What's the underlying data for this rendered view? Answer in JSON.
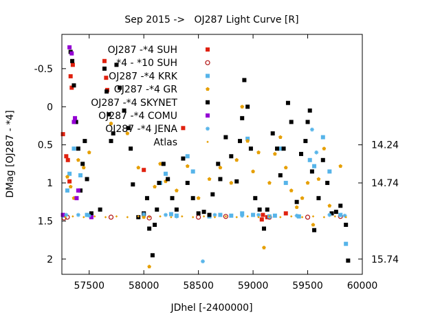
{
  "chart_data": {
    "type": "scatter",
    "title": "Sep 2015 ->   OJ287 Light Curve [R]",
    "xlabel": "JDhel [-2400000]",
    "ylabel": "DMag [OJ287 - *4]",
    "xlim": [
      57250,
      60000
    ],
    "ylim": [
      2.2,
      -0.95
    ],
    "y_inverted": true,
    "x_ticks": [
      57500,
      58000,
      58500,
      59000,
      59500,
      60000
    ],
    "y_ticks": [
      -0.5,
      0,
      0.5,
      1,
      1.5,
      2
    ],
    "y_tick_labels": [
      "-0.5",
      "0",
      "0.5",
      "1",
      "1.5",
      "2"
    ],
    "right_ticks": [
      {
        "y": 0.5,
        "label": "14.24"
      },
      {
        "y": 1.0,
        "label": "14.74"
      },
      {
        "y": 2.0,
        "label": "15.74"
      }
    ],
    "grid": false,
    "legend_position": "top-left",
    "series": [
      {
        "name": "OJ287 -*4 SUH",
        "marker": "square",
        "color": "#e0210f",
        "points": [
          [
            57260,
            0.36
          ],
          [
            57290,
            0.65
          ],
          [
            57305,
            0.7
          ],
          [
            57320,
            0.98
          ],
          [
            57330,
            -0.4
          ],
          [
            57340,
            -0.25
          ],
          [
            57350,
            -0.55
          ],
          [
            57640,
            -0.6
          ],
          [
            57655,
            -0.38
          ],
          [
            57665,
            -0.22
          ],
          [
            58000,
            0.83
          ],
          [
            58360,
            0.28
          ],
          [
            59080,
            1.48
          ],
          [
            59090,
            1.42
          ],
          [
            59130,
            1.45
          ],
          [
            59300,
            1.4
          ]
        ]
      },
      {
        "name": "*4 - *10 SUH",
        "marker": "circle-open",
        "color": "#b01010",
        "points": [
          [
            57270,
            1.46
          ],
          [
            57300,
            1.45
          ],
          [
            57700,
            1.45
          ],
          [
            58050,
            1.46
          ],
          [
            58500,
            1.45
          ],
          [
            58750,
            1.44
          ],
          [
            59150,
            1.45
          ],
          [
            59500,
            1.45
          ],
          [
            59800,
            1.44
          ]
        ]
      },
      {
        "name": "OJ287 -*4 KRK",
        "marker": "square",
        "color": "#56b4e9",
        "points": [
          [
            57270,
            1.43
          ],
          [
            57300,
            1.1
          ],
          [
            57320,
            0.88
          ],
          [
            57360,
            0.55
          ],
          [
            57420,
            0.9
          ],
          [
            57480,
            1.42
          ],
          [
            57520,
            1.43
          ],
          [
            58000,
            1.42
          ],
          [
            58150,
            1.0
          ],
          [
            58200,
            0.88
          ],
          [
            58250,
            1.41
          ],
          [
            58300,
            1.43
          ],
          [
            58400,
            0.65
          ],
          [
            58450,
            0.85
          ],
          [
            58600,
            1.44
          ],
          [
            58700,
            1.42
          ],
          [
            58800,
            1.43
          ],
          [
            58900,
            1.4
          ],
          [
            58950,
            0.42
          ],
          [
            59000,
            1.42
          ],
          [
            59150,
            1.44
          ],
          [
            59200,
            1.43
          ],
          [
            59250,
            0.55
          ],
          [
            59300,
            1.0
          ],
          [
            59420,
            1.44
          ],
          [
            59520,
            0.7
          ],
          [
            59560,
            0.78
          ],
          [
            59640,
            0.4
          ],
          [
            59700,
            0.85
          ],
          [
            59800,
            1.42
          ],
          [
            59850,
            1.8
          ]
        ]
      },
      {
        "name": "OJ287 -*4 GR",
        "marker": "pentagon",
        "color": "#e69f00",
        "points": [
          [
            57300,
            0.92
          ],
          [
            57330,
            1.05
          ],
          [
            57360,
            1.2
          ],
          [
            57400,
            0.7
          ],
          [
            57450,
            0.8
          ],
          [
            57500,
            0.6
          ],
          [
            57700,
            0.22
          ],
          [
            57850,
            0.35
          ],
          [
            57880,
            0.55
          ],
          [
            57950,
            0.8
          ],
          [
            58000,
            1.45
          ],
          [
            58050,
            2.1
          ],
          [
            58100,
            1.05
          ],
          [
            58150,
            0.75
          ],
          [
            58200,
            0.98
          ],
          [
            58300,
            1.1
          ],
          [
            58400,
            0.78
          ],
          [
            58500,
            1.2
          ],
          [
            58600,
            0.95
          ],
          [
            58700,
            0.8
          ],
          [
            58800,
            1.0
          ],
          [
            58850,
            0.7
          ],
          [
            58900,
            0.0
          ],
          [
            58950,
            0.45
          ],
          [
            59000,
            0.85
          ],
          [
            59050,
            0.6
          ],
          [
            59100,
            1.85
          ],
          [
            59150,
            1.0
          ],
          [
            59200,
            0.62
          ],
          [
            59250,
            0.4
          ],
          [
            59300,
            0.8
          ],
          [
            59350,
            1.1
          ],
          [
            59400,
            1.32
          ],
          [
            59450,
            1.2
          ],
          [
            59500,
            1.0
          ],
          [
            59550,
            1.55
          ],
          [
            59600,
            0.95
          ],
          [
            59650,
            0.55
          ],
          [
            59700,
            1.3
          ],
          [
            59800,
            0.78
          ]
        ]
      },
      {
        "name": "OJ287 -*4 SKYNET",
        "marker": "square",
        "color": "#000000",
        "points": [
          [
            57330,
            -0.72
          ],
          [
            57345,
            -0.6
          ],
          [
            57360,
            -0.28
          ],
          [
            57380,
            0.2
          ],
          [
            57400,
            0.55
          ],
          [
            57420,
            1.1
          ],
          [
            57440,
            0.75
          ],
          [
            57460,
            0.45
          ],
          [
            57480,
            0.95
          ],
          [
            57520,
            1.4
          ],
          [
            57600,
            1.35
          ],
          [
            57640,
            -0.5
          ],
          [
            57660,
            -0.2
          ],
          [
            57680,
            0.1
          ],
          [
            57700,
            0.45
          ],
          [
            57720,
            0.35
          ],
          [
            57750,
            -0.55
          ],
          [
            57780,
            -0.25
          ],
          [
            57820,
            0.05
          ],
          [
            57860,
            0.28
          ],
          [
            57880,
            0.55
          ],
          [
            57900,
            1.02
          ],
          [
            57950,
            1.45
          ],
          [
            58000,
            1.4
          ],
          [
            58030,
            1.2
          ],
          [
            58050,
            1.6
          ],
          [
            58080,
            1.95
          ],
          [
            58100,
            1.55
          ],
          [
            58120,
            1.35
          ],
          [
            58140,
            1.0
          ],
          [
            58180,
            0.75
          ],
          [
            58220,
            0.95
          ],
          [
            58260,
            1.2
          ],
          [
            58300,
            1.35
          ],
          [
            58360,
            0.68
          ],
          [
            58400,
            1.0
          ],
          [
            58450,
            1.2
          ],
          [
            58500,
            1.4
          ],
          [
            58550,
            1.38
          ],
          [
            58600,
            1.42
          ],
          [
            58630,
            1.15
          ],
          [
            58680,
            0.75
          ],
          [
            58700,
            0.95
          ],
          [
            58750,
            0.4
          ],
          [
            58800,
            0.65
          ],
          [
            58850,
            0.98
          ],
          [
            58880,
            0.45
          ],
          [
            58900,
            0.15
          ],
          [
            58920,
            -0.35
          ],
          [
            58950,
            0.0
          ],
          [
            58980,
            0.55
          ],
          [
            59020,
            1.2
          ],
          [
            59060,
            1.35
          ],
          [
            59100,
            1.6
          ],
          [
            59130,
            1.35
          ],
          [
            59180,
            0.35
          ],
          [
            59220,
            0.55
          ],
          [
            59250,
            0.9
          ],
          [
            59280,
            0.55
          ],
          [
            59320,
            -0.05
          ],
          [
            59350,
            0.2
          ],
          [
            59400,
            1.25
          ],
          [
            59440,
            0.62
          ],
          [
            59480,
            0.45
          ],
          [
            59500,
            0.2
          ],
          [
            59520,
            0.05
          ],
          [
            59540,
            0.85
          ],
          [
            59560,
            1.62
          ],
          [
            59600,
            1.2
          ],
          [
            59640,
            0.7
          ],
          [
            59680,
            1.0
          ],
          [
            59720,
            1.4
          ],
          [
            59760,
            1.38
          ],
          [
            59800,
            1.3
          ],
          [
            59850,
            1.55
          ],
          [
            59870,
            2.02
          ]
        ]
      },
      {
        "name": "OJ287 -*4 COMU",
        "marker": "square",
        "color": "#9400d3",
        "points": [
          [
            57320,
            -0.78
          ],
          [
            57340,
            -0.7
          ],
          [
            57360,
            0.2
          ],
          [
            57370,
            0.15
          ],
          [
            57385,
            1.2
          ],
          [
            57400,
            1.1
          ],
          [
            57260,
            1.42
          ],
          [
            57520,
            1.45
          ]
        ]
      },
      {
        "name": "OJ287 -*4 JENA",
        "marker": "asterisk",
        "color": "#56b4e9",
        "points": [
          [
            57290,
            1.42
          ],
          [
            57400,
            1.42
          ],
          [
            57500,
            1.43
          ],
          [
            58000,
            1.41
          ],
          [
            58200,
            1.42
          ],
          [
            58300,
            1.44
          ],
          [
            58540,
            2.03
          ],
          [
            58650,
            1.42
          ],
          [
            58900,
            1.43
          ],
          [
            59050,
            1.42
          ],
          [
            59400,
            1.43
          ],
          [
            59540,
            0.3
          ],
          [
            59580,
            0.6
          ],
          [
            59700,
            1.42
          ],
          [
            59840,
            1.43
          ]
        ]
      },
      {
        "name": "Atlas",
        "marker": "diamond",
        "color": "#e69f00",
        "points": [
          [
            57280,
            1.45
          ],
          [
            57350,
            1.44
          ],
          [
            57450,
            1.45
          ],
          [
            57550,
            1.44
          ],
          [
            57650,
            1.45
          ],
          [
            57750,
            1.44
          ],
          [
            57850,
            1.45
          ],
          [
            57950,
            1.44
          ],
          [
            58050,
            1.45
          ],
          [
            58150,
            1.44
          ],
          [
            58250,
            1.45
          ],
          [
            58350,
            1.44
          ],
          [
            58450,
            1.45
          ],
          [
            58550,
            1.44
          ],
          [
            58650,
            1.45
          ],
          [
            58750,
            1.44
          ],
          [
            58850,
            1.45
          ],
          [
            58950,
            1.44
          ],
          [
            59050,
            1.45
          ],
          [
            59150,
            1.44
          ],
          [
            59250,
            1.45
          ],
          [
            59350,
            1.44
          ],
          [
            59450,
            1.45
          ],
          [
            59550,
            1.44
          ],
          [
            59650,
            1.45
          ],
          [
            59750,
            1.44
          ],
          [
            59850,
            1.45
          ]
        ]
      }
    ]
  }
}
